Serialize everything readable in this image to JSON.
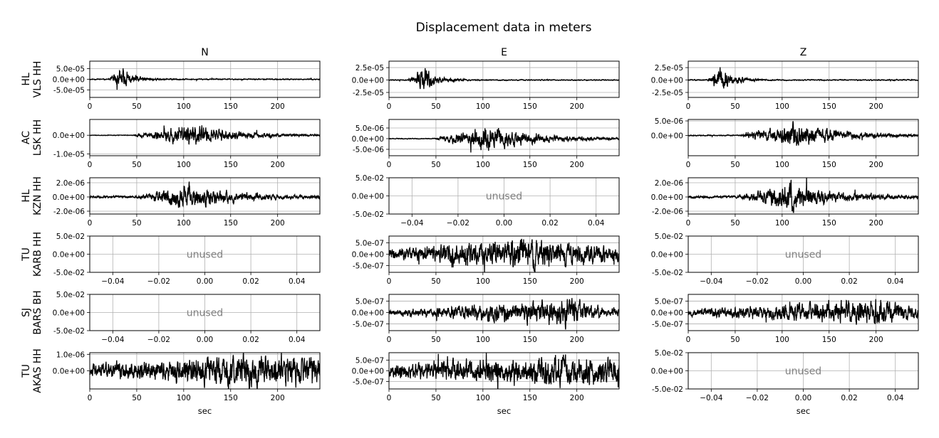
{
  "chart_data": {
    "type": "line",
    "title": "Displacement data in meters",
    "columns": [
      "N",
      "E",
      "Z"
    ],
    "rows": [
      {
        "label_line1": "HL",
        "label_line2": "VLS HH"
      },
      {
        "label_line1": "AC",
        "label_line2": "LSK HH"
      },
      {
        "label_line1": "HL",
        "label_line2": "KZN HH"
      },
      {
        "label_line1": "TU",
        "label_line2": "KARB HH"
      },
      {
        "label_line1": "SJ",
        "label_line2": "BARS BH"
      },
      {
        "label_line1": "TU",
        "label_line2": "AKAS HH"
      }
    ],
    "xlabel": "sec",
    "unused_text": "unused",
    "time_ticks": [
      "0",
      "50",
      "100",
      "150",
      "200"
    ],
    "time_xlim": [
      0,
      245
    ],
    "unused_xticks": [
      "−0.04",
      "−0.02",
      "0.00",
      "0.02",
      "0.04"
    ],
    "unused_xlim": [
      -0.05,
      0.05
    ],
    "unused_yticks": [
      "5.0e-02",
      "0.0e+00",
      "-5.0e-02"
    ],
    "unused_ylim": [
      -0.05,
      0.05
    ],
    "grid": true,
    "line_color": "#000000",
    "panels": [
      [
        {
          "unused": false,
          "ylim": [
            -8.5e-05,
            8.5e-05
          ],
          "yticks": [
            5e-05,
            0,
            -5e-05
          ],
          "ytick_labels": [
            "5.0e-05",
            "0.0e+00",
            "-5.0e-05"
          ],
          "onset": 20,
          "peak": 35,
          "amp": 7e-05,
          "noise": 2e-06,
          "decay": 12,
          "seed": 11
        },
        {
          "unused": false,
          "ylim": [
            -3.5e-05,
            3.8e-05
          ],
          "yticks": [
            2.5e-05,
            0,
            -2.5e-05
          ],
          "ytick_labels": [
            "2.5e-05",
            "0.0e+00",
            "-2.5e-05"
          ],
          "onset": 20,
          "peak": 38,
          "amp": 3.5e-05,
          "noise": 8e-07,
          "decay": 12,
          "seed": 12
        },
        {
          "unused": false,
          "ylim": [
            -3.5e-05,
            3.8e-05
          ],
          "yticks": [
            2.5e-05,
            0,
            -2.5e-05
          ],
          "ytick_labels": [
            "2.5e-05",
            "0.0e+00",
            "-2.5e-05"
          ],
          "onset": 20,
          "peak": 35,
          "amp": 3.5e-05,
          "noise": 8e-07,
          "decay": 13,
          "seed": 13
        }
      ],
      [
        {
          "unused": false,
          "ylim": [
            -1.1e-05,
            8.5e-06
          ],
          "yticks": [
            0,
            -1e-05
          ],
          "ytick_labels": [
            "0.0e+00",
            "-1.0e-05"
          ],
          "onset": 45,
          "peak": 110,
          "amp": 8e-06,
          "noise": 1.5e-07,
          "decay": 45,
          "seed": 21
        },
        {
          "unused": false,
          "ylim": [
            -8e-06,
            9e-06
          ],
          "yticks": [
            5e-06,
            0,
            -5e-06
          ],
          "ytick_labels": [
            "5.0e-06",
            "0.0e+00",
            "-5.0e-06"
          ],
          "onset": 50,
          "peak": 105,
          "amp": 8.5e-06,
          "noise": 1.5e-07,
          "decay": 45,
          "seed": 22
        },
        {
          "unused": false,
          "ylim": [
            -7e-06,
            5.5e-06
          ],
          "yticks": [
            5e-06,
            0
          ],
          "ytick_labels": [
            "5.0e-06",
            "0.0e+00"
          ],
          "onset": 55,
          "peak": 115,
          "amp": 6e-06,
          "noise": 1.5e-07,
          "decay": 45,
          "seed": 23
        }
      ],
      [
        {
          "unused": false,
          "ylim": [
            -2.4e-06,
            2.7e-06
          ],
          "yticks": [
            2e-06,
            0,
            -2e-06
          ],
          "ytick_labels": [
            "2.0e-06",
            "0.0e+00",
            "-2.0e-06"
          ],
          "onset": 50,
          "peak": 105,
          "amp": 2.5e-06,
          "noise": 1.2e-07,
          "decay": 45,
          "seed": 31
        },
        {
          "unused": true
        },
        {
          "unused": false,
          "ylim": [
            -2.4e-06,
            2.7e-06
          ],
          "yticks": [
            2e-06,
            0,
            -2e-06
          ],
          "ytick_labels": [
            "2.0e-06",
            "0.0e+00",
            "-2.0e-06"
          ],
          "onset": 50,
          "peak": 110,
          "amp": 2.5e-06,
          "noise": 1.2e-07,
          "decay": 45,
          "seed": 33
        }
      ],
      [
        {
          "unused": true
        },
        {
          "unused": false,
          "ylim": [
            -8e-07,
            8e-07
          ],
          "yticks": [
            5e-07,
            0,
            -5e-07
          ],
          "ytick_labels": [
            "5.0e-07",
            "0.0e+00",
            "-5.0e-07"
          ],
          "onset": 0,
          "peak": 150,
          "amp": 6e-07,
          "noise": 2e-07,
          "decay": 80,
          "seed": 42
        },
        {
          "unused": true
        }
      ],
      [
        {
          "unused": true
        },
        {
          "unused": false,
          "ylim": [
            -8e-07,
            8e-07
          ],
          "yticks": [
            5e-07,
            0,
            -5e-07
          ],
          "ytick_labels": [
            "5.0e-07",
            "0.0e+00",
            "-5.0e-07"
          ],
          "onset": 0,
          "peak": 195,
          "amp": 7e-07,
          "noise": 8e-08,
          "decay": 25,
          "seed": 52
        },
        {
          "unused": false,
          "ylim": [
            -8e-07,
            8e-07
          ],
          "yticks": [
            5e-07,
            0,
            -5e-07
          ],
          "ytick_labels": [
            "5.0e-07",
            "0.0e+00",
            "-5.0e-07"
          ],
          "onset": 0,
          "peak": 200,
          "amp": 6e-07,
          "noise": 1.2e-07,
          "decay": 45,
          "seed": 53
        }
      ],
      [
        {
          "unused": false,
          "ylim": [
            -1.1e-06,
            1.1e-06
          ],
          "yticks": [
            1e-06,
            0
          ],
          "ytick_labels": [
            "1.0e-06",
            "0.0e+00"
          ],
          "onset": 0,
          "peak": 190,
          "amp": 8e-07,
          "noise": 3.5e-07,
          "decay": 120,
          "seed": 61
        },
        {
          "unused": false,
          "ylim": [
            -8.5e-07,
            8.5e-07
          ],
          "yticks": [
            5e-07,
            0,
            -5e-07
          ],
          "ytick_labels": [
            "5.0e-07",
            "0.0e+00",
            "-5.0e-07"
          ],
          "onset": 0,
          "peak": 185,
          "amp": 6e-07,
          "noise": 2.5e-07,
          "decay": 100,
          "seed": 62
        },
        {
          "unused": true
        }
      ]
    ]
  }
}
